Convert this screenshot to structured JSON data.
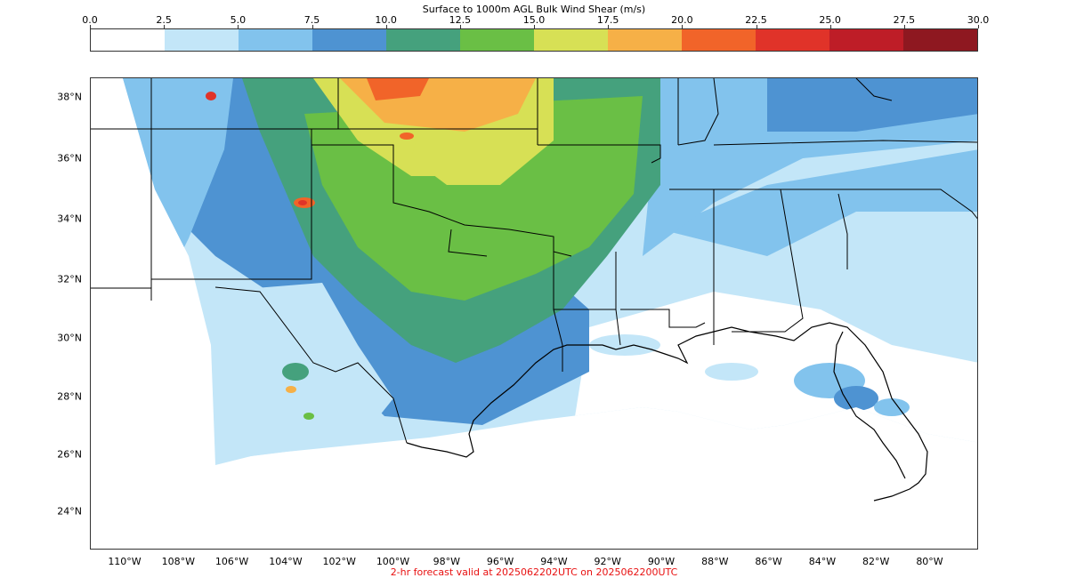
{
  "colorbar": {
    "title": "Surface to 1000m AGL Bulk Wind Shear (m/s)",
    "ticks": [
      "0.0",
      "2.5",
      "5.0",
      "7.5",
      "10.0",
      "12.5",
      "15.0",
      "17.5",
      "20.0",
      "22.5",
      "25.0",
      "27.5",
      "30.0"
    ],
    "colors": [
      "#ffffff",
      "#c3e6f8",
      "#82c3ed",
      "#4e93d2",
      "#45a17d",
      "#6abf45",
      "#d7e055",
      "#f6b047",
      "#f16429",
      "#e03329",
      "#be1d27",
      "#8e1820"
    ]
  },
  "map": {
    "lat_labels": [
      "38°N",
      "36°N",
      "34°N",
      "32°N",
      "30°N",
      "28°N",
      "26°N",
      "24°N"
    ],
    "lon_labels": [
      "110°W",
      "108°W",
      "106°W",
      "104°W",
      "102°W",
      "100°W",
      "98°W",
      "96°W",
      "94°W",
      "92°W",
      "90°W",
      "88°W",
      "86°W",
      "84°W",
      "82°W",
      "80°W"
    ]
  },
  "footer": "2-hr forecast valid at 2025062202UTC on 2025062200UTC"
}
